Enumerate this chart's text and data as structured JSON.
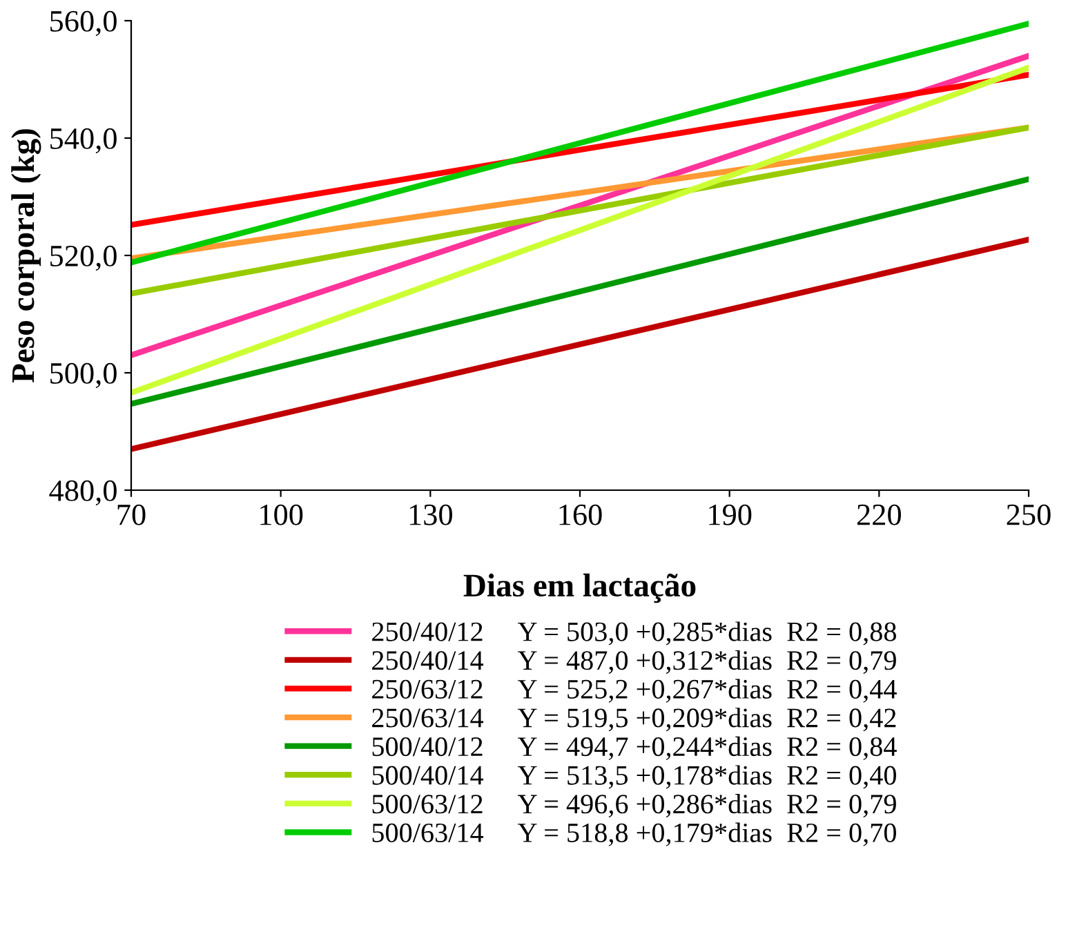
{
  "chart_data": {
    "type": "line",
    "xlabel": "Dias em lactação",
    "ylabel": "Peso corporal (kg)",
    "xlim": [
      70,
      250
    ],
    "xticks": [
      70,
      100,
      130,
      160,
      190,
      220,
      250
    ],
    "ylim": [
      480,
      560
    ],
    "yticks": [
      {
        "value": 480,
        "label": "480,0"
      },
      {
        "value": 500,
        "label": "500,0"
      },
      {
        "value": 520,
        "label": "520,0"
      },
      {
        "value": 540,
        "label": "540,0"
      },
      {
        "value": 560,
        "label": "560,0"
      }
    ],
    "grid": false,
    "legend": "bottom",
    "marker": "none",
    "line_style": "solid",
    "x": [
      70,
      250
    ],
    "series": [
      {
        "name": "250/40/12     Y = 503,0 +0,285*dias  R2 = 0,88",
        "color": "#ff3399",
        "values": [
          503.0,
          554.0
        ]
      },
      {
        "name": "250/40/14     Y = 487,0 +0,312*dias  R2 = 0,79",
        "color": "#c00000",
        "values": [
          487.0,
          522.7
        ]
      },
      {
        "name": "250/63/12     Y = 525,2 +0,267*dias  R2 = 0,44",
        "color": "#ff0000",
        "values": [
          525.2,
          550.8
        ]
      },
      {
        "name": "250/63/14     Y = 519,5 +0,209*dias  R2 = 0,42",
        "color": "#ff9933",
        "values": [
          519.5,
          541.8
        ]
      },
      {
        "name": "500/40/12     Y = 494,7 +0,244*dias  R2 = 0,84",
        "color": "#009900",
        "values": [
          494.7,
          533.0
        ]
      },
      {
        "name": "500/40/14     Y = 513,5 +0,178*dias  R2 = 0,40",
        "color": "#99cc00",
        "values": [
          513.5,
          541.8
        ]
      },
      {
        "name": "500/63/12     Y = 496,6 +0,286*dias  R2 = 0,79",
        "color": "#ccff33",
        "values": [
          496.6,
          552.0
        ]
      },
      {
        "name": "500/63/14     Y = 518,8 +0,179*dias  R2 = 0,70",
        "color": "#00cc00",
        "values": [
          518.8,
          559.5
        ]
      }
    ]
  }
}
